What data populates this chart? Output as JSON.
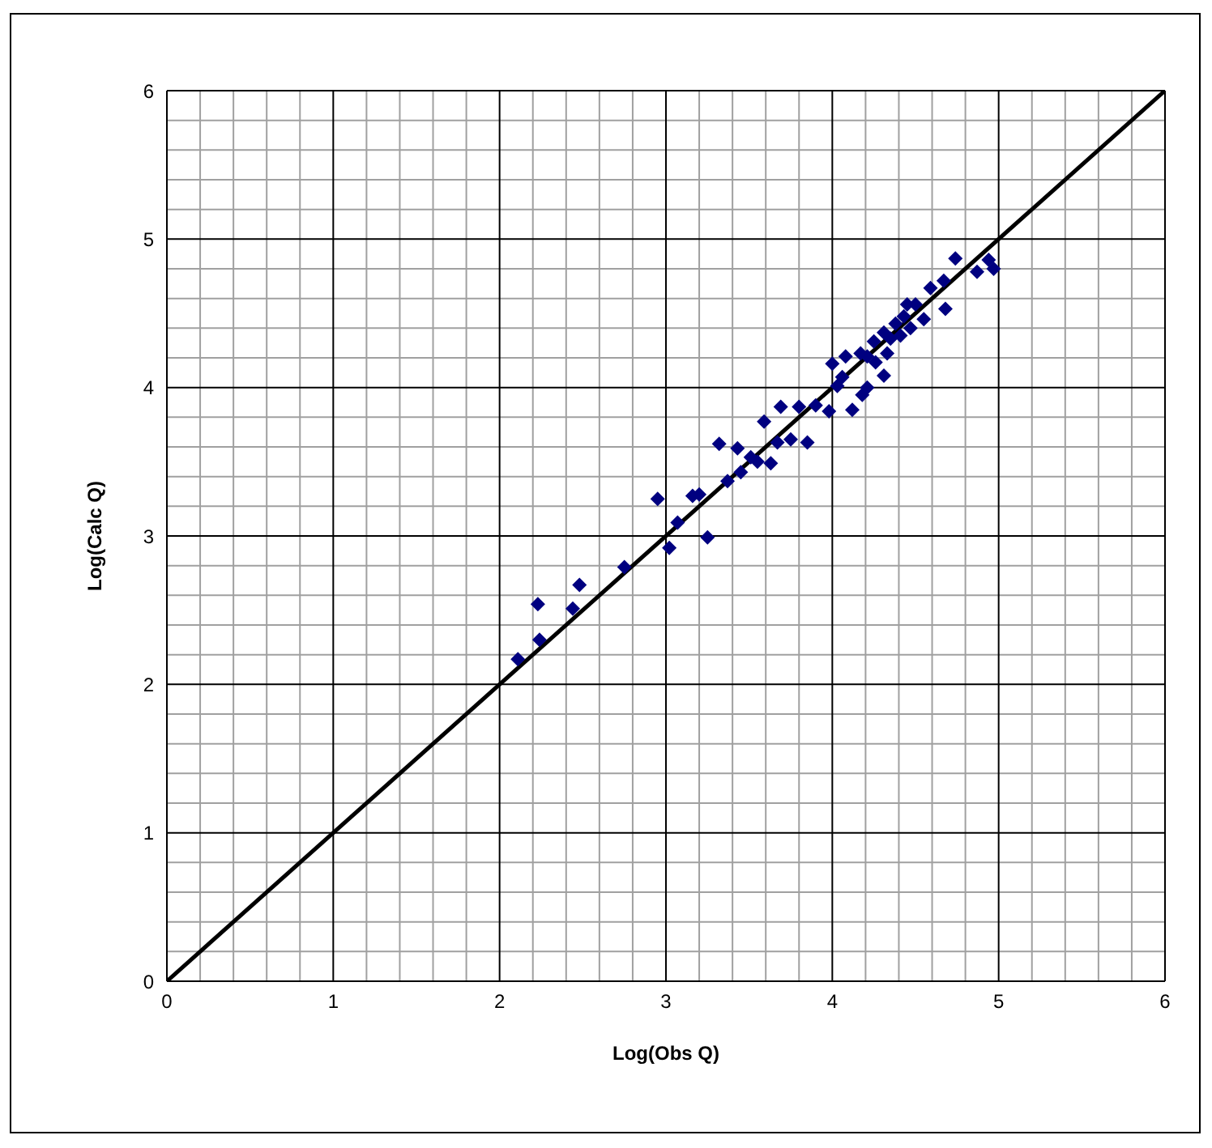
{
  "chart_data": {
    "type": "scatter",
    "xlabel": "Log(Obs Q)",
    "ylabel": "Log(Calc Q)",
    "xlim": [
      0,
      6
    ],
    "ylim": [
      0,
      6
    ],
    "xticks": [
      0,
      1,
      2,
      3,
      4,
      5,
      6
    ],
    "yticks": [
      0,
      1,
      2,
      3,
      4,
      5,
      6
    ],
    "grid": true,
    "legend": false,
    "series": [
      {
        "type": "scatter",
        "marker": "diamond",
        "color": "#000080",
        "x": [
          2.11,
          2.23,
          2.24,
          2.44,
          2.48,
          2.75,
          2.95,
          3.02,
          3.07,
          3.16,
          3.2,
          3.25,
          3.32,
          3.37,
          3.43,
          3.45,
          3.51,
          3.55,
          3.59,
          3.63,
          3.67,
          3.69,
          3.75,
          3.8,
          3.85,
          3.9,
          3.98,
          4.0,
          4.03,
          4.06,
          4.08,
          4.12,
          4.17,
          4.18,
          4.21,
          4.25,
          4.26,
          4.31,
          4.31,
          4.33,
          4.35,
          4.38,
          4.41,
          4.43,
          4.47,
          4.5,
          4.55,
          4.59,
          4.67,
          4.68,
          4.74,
          4.87,
          4.94,
          4.97,
          4.45,
          4.21
        ],
        "values": [
          2.17,
          2.54,
          2.3,
          2.51,
          2.67,
          2.79,
          3.25,
          2.92,
          3.09,
          3.27,
          3.28,
          2.99,
          3.62,
          3.37,
          3.59,
          3.43,
          3.53,
          3.5,
          3.77,
          3.49,
          3.63,
          3.87,
          3.65,
          3.87,
          3.63,
          3.88,
          3.84,
          4.16,
          4.01,
          4.07,
          4.21,
          3.85,
          4.23,
          3.95,
          4.21,
          4.31,
          4.17,
          4.37,
          4.08,
          4.23,
          4.33,
          4.43,
          4.35,
          4.48,
          4.4,
          4.56,
          4.46,
          4.67,
          4.72,
          4.53,
          4.87,
          4.78,
          4.86,
          4.8,
          4.56,
          4.0
        ]
      },
      {
        "type": "line",
        "color": "#000000",
        "x": [
          0,
          6
        ],
        "values": [
          0,
          6
        ]
      }
    ]
  }
}
